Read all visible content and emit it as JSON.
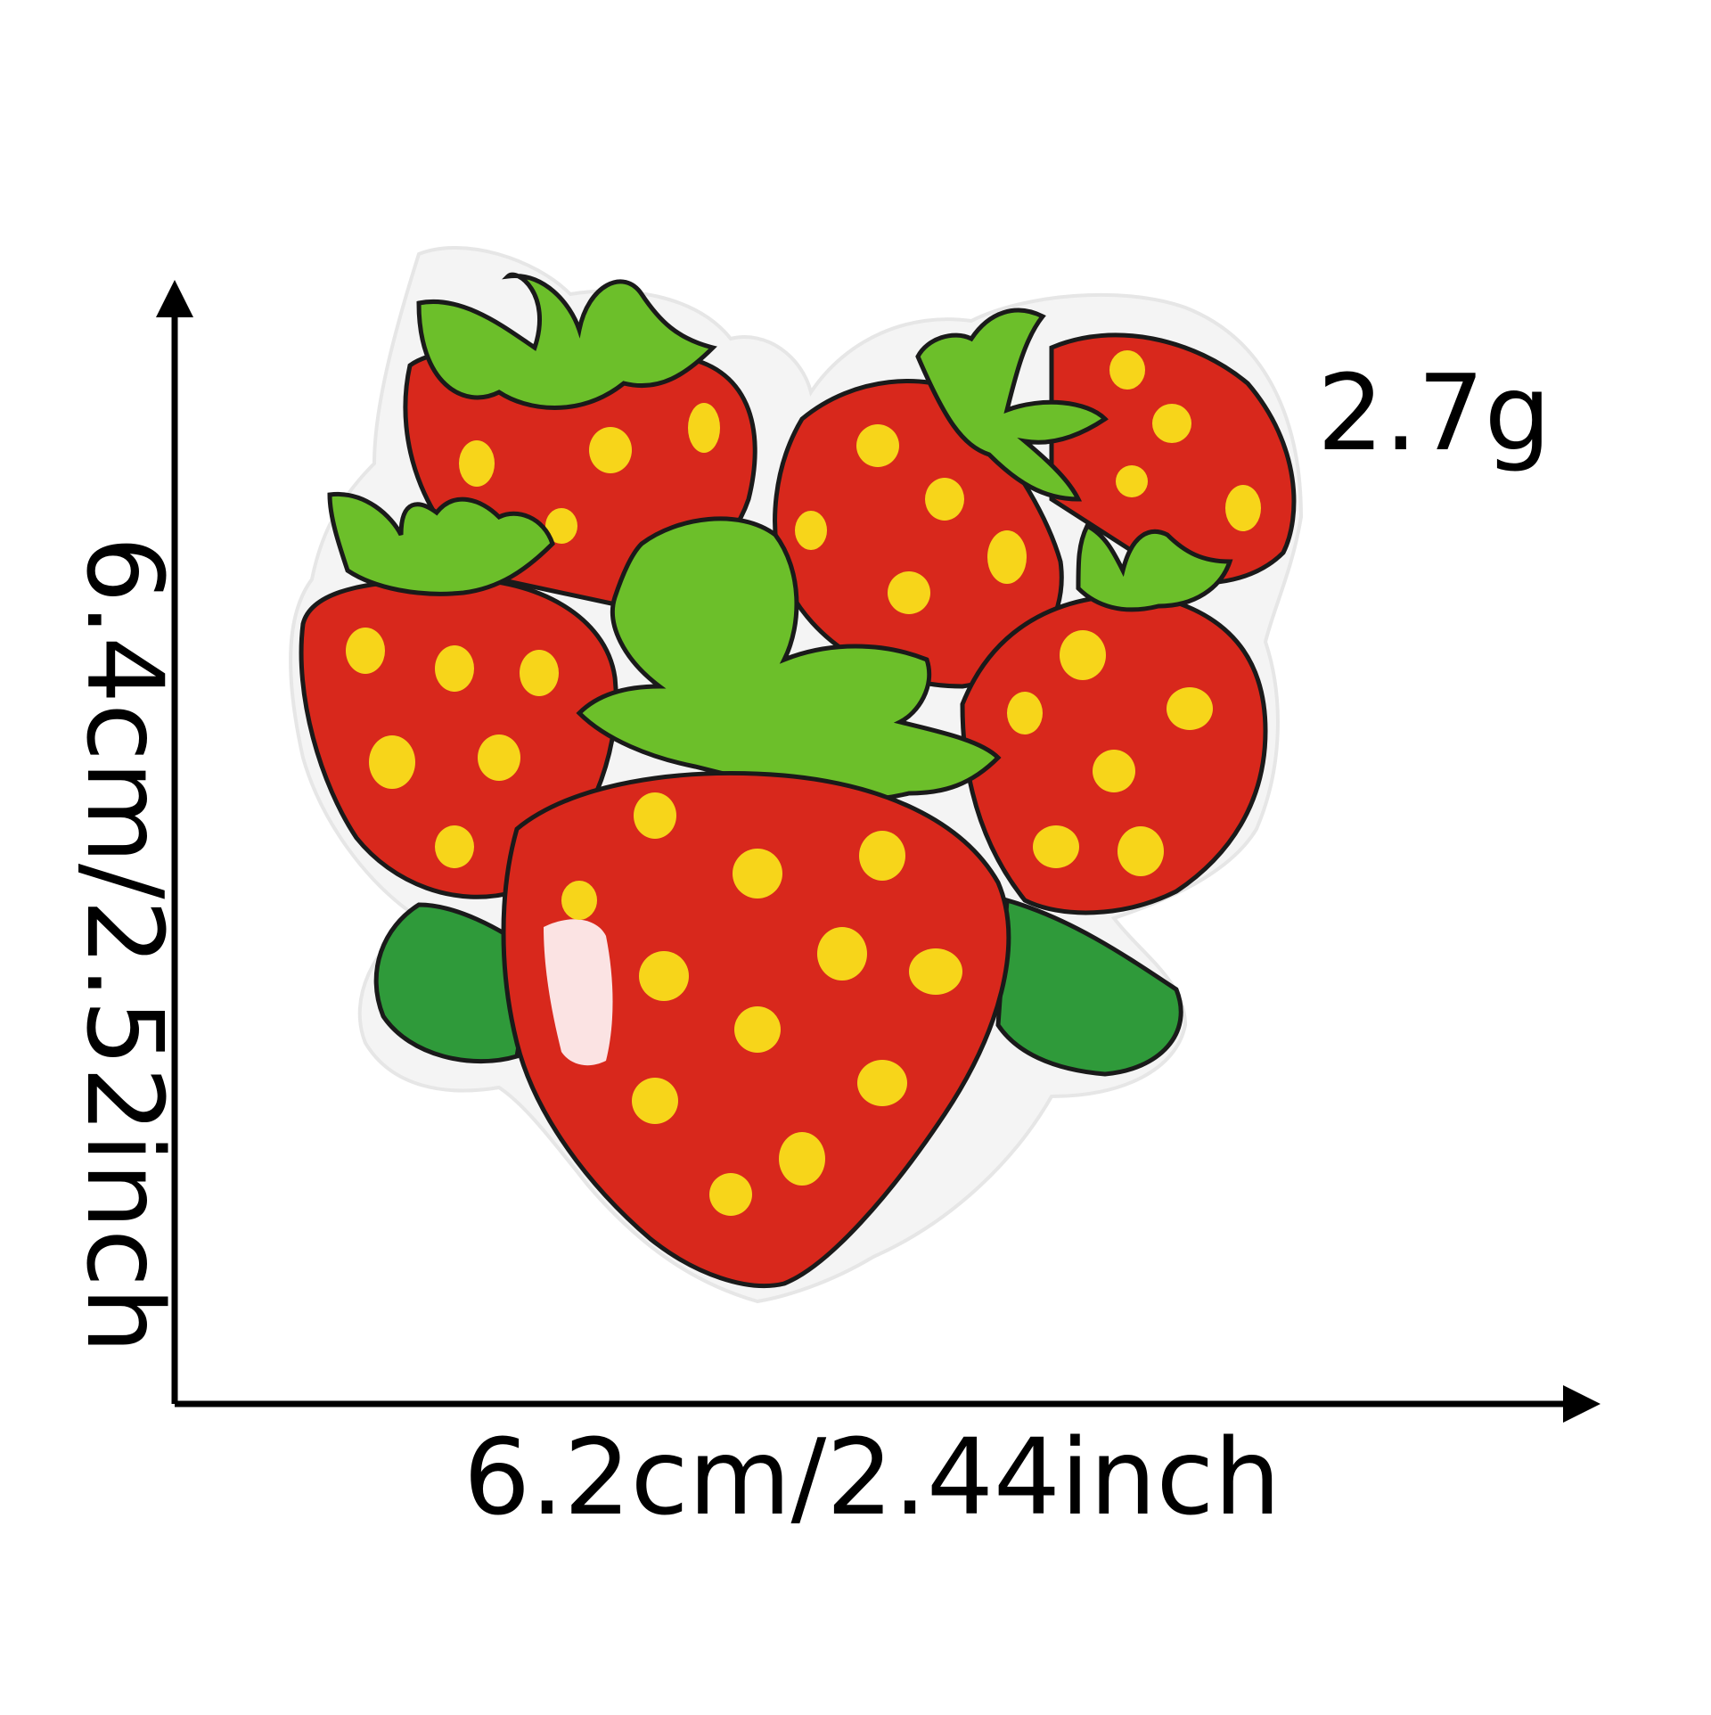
{
  "product": {
    "name_icon": "strawberry-cluster-embroidered-patch",
    "weight": "2.7g",
    "width": "6.2cm/2.44inch",
    "height": "6.4cm/2.52inch"
  },
  "colors": {
    "background": "#ffffff",
    "patch_backing": "#f4f4f4",
    "berry_red": "#d8281c",
    "berry_red_dark": "#b81f14",
    "seed_yellow": "#f7d51a",
    "leaf_green": "#6cbf2a",
    "leaf_green_dark": "#2f9a3a",
    "outline": "#1a1a1a",
    "highlight": "#fbe3e3",
    "dimension_line": "#000000"
  }
}
